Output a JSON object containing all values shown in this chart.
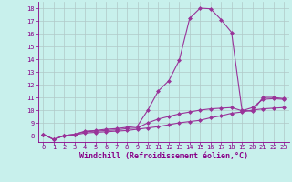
{
  "title": "",
  "xlabel": "Windchill (Refroidissement éolien,°C)",
  "ylabel": "",
  "bg_color": "#c8f0ec",
  "line_color": "#993399",
  "grid_color": "#b0c8c8",
  "xlim": [
    -0.5,
    23.5
  ],
  "ylim": [
    7.5,
    18.5
  ],
  "xticks": [
    0,
    1,
    2,
    3,
    4,
    5,
    6,
    7,
    8,
    9,
    10,
    11,
    12,
    13,
    14,
    15,
    16,
    17,
    18,
    19,
    20,
    21,
    22,
    23
  ],
  "yticks": [
    8,
    9,
    10,
    11,
    12,
    13,
    14,
    15,
    16,
    17,
    18
  ],
  "curve1_x": [
    0,
    1,
    2,
    3,
    4,
    5,
    6,
    7,
    8,
    9,
    10,
    11,
    12,
    13,
    14,
    15,
    16,
    17,
    18,
    19,
    20,
    21,
    22,
    23
  ],
  "curve1_y": [
    8.1,
    7.7,
    8.0,
    8.1,
    8.35,
    8.4,
    8.5,
    8.55,
    8.65,
    8.75,
    10.0,
    11.5,
    12.3,
    13.9,
    17.2,
    18.0,
    17.95,
    17.1,
    16.1,
    10.0,
    9.9,
    11.0,
    11.0,
    10.9
  ],
  "curve2_x": [
    0,
    1,
    2,
    3,
    4,
    5,
    6,
    7,
    8,
    9,
    10,
    11,
    12,
    13,
    14,
    15,
    16,
    17,
    18,
    19,
    20,
    21,
    22,
    23
  ],
  "curve2_y": [
    8.1,
    7.7,
    8.0,
    8.1,
    8.3,
    8.35,
    8.4,
    8.45,
    8.55,
    8.6,
    9.0,
    9.3,
    9.5,
    9.7,
    9.85,
    10.0,
    10.1,
    10.15,
    10.2,
    9.95,
    10.2,
    10.85,
    10.9,
    10.85
  ],
  "curve3_x": [
    0,
    1,
    2,
    3,
    4,
    5,
    6,
    7,
    8,
    9,
    10,
    11,
    12,
    13,
    14,
    15,
    16,
    17,
    18,
    19,
    20,
    21,
    22,
    23
  ],
  "curve3_y": [
    8.1,
    7.7,
    8.0,
    8.05,
    8.2,
    8.25,
    8.3,
    8.35,
    8.4,
    8.5,
    8.6,
    8.7,
    8.85,
    9.0,
    9.1,
    9.2,
    9.4,
    9.55,
    9.75,
    9.85,
    10.0,
    10.1,
    10.15,
    10.2
  ],
  "marker": "D",
  "markersize": 2.0,
  "linewidth": 0.8,
  "tick_fontsize": 5.0,
  "xlabel_fontsize": 6.0,
  "tick_color": "#880088",
  "label_color": "#880088"
}
